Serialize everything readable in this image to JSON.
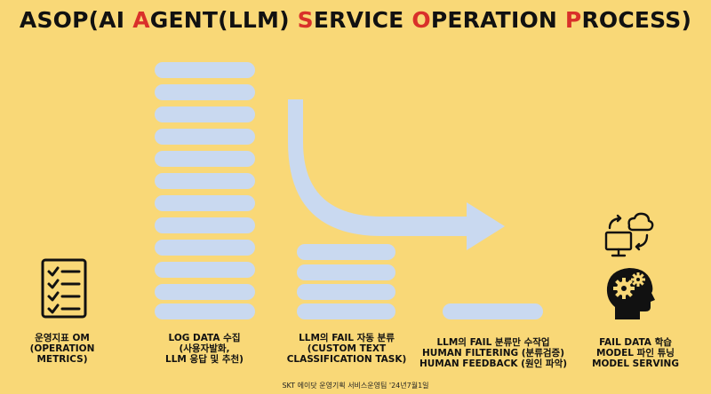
{
  "title": {
    "parts": [
      {
        "text": "ASOP(AI ",
        "red": false
      },
      {
        "text": "A",
        "red": true
      },
      {
        "text": "GENT(LLM) ",
        "red": false
      },
      {
        "text": "S",
        "red": true
      },
      {
        "text": "ERVICE ",
        "red": false
      },
      {
        "text": "O",
        "red": true
      },
      {
        "text": "PERATION ",
        "red": false
      },
      {
        "text": "P",
        "red": true
      },
      {
        "text": "ROCESS)",
        "red": false
      }
    ]
  },
  "colors": {
    "background": "#F9D877",
    "bar": "#C9D9F0",
    "accent": "#D9302A",
    "icon": "#111111"
  },
  "steps": [
    {
      "icon": "checklist-icon",
      "lines": [
        "운영지표 OM",
        "(OPERATION",
        "METRICS)"
      ]
    },
    {
      "icon": "",
      "lines": [
        "LOG DATA 수집",
        "(사용자발화,",
        "LLM 응답 및 추천)"
      ]
    },
    {
      "icon": "",
      "lines": [
        "LLM의 FAIL 자동 분류",
        "(CUSTOM TEXT",
        "CLASSIFICATION TASK)"
      ]
    },
    {
      "icon": "",
      "lines": [
        "LLM의 FAIL 분류만 수작업",
        "HUMAN FILTERING (분류검증)",
        "HUMAN FEEDBACK (원인 파악)"
      ]
    },
    {
      "icon": "brain-gears-icon",
      "lines": [
        "FAIL DATA 학습",
        "MODEL 파인 튜닝",
        "MODEL SERVING"
      ]
    }
  ],
  "footer": "SKT 에이닷 운영기획 서비스운영팀 '24년7월1일"
}
